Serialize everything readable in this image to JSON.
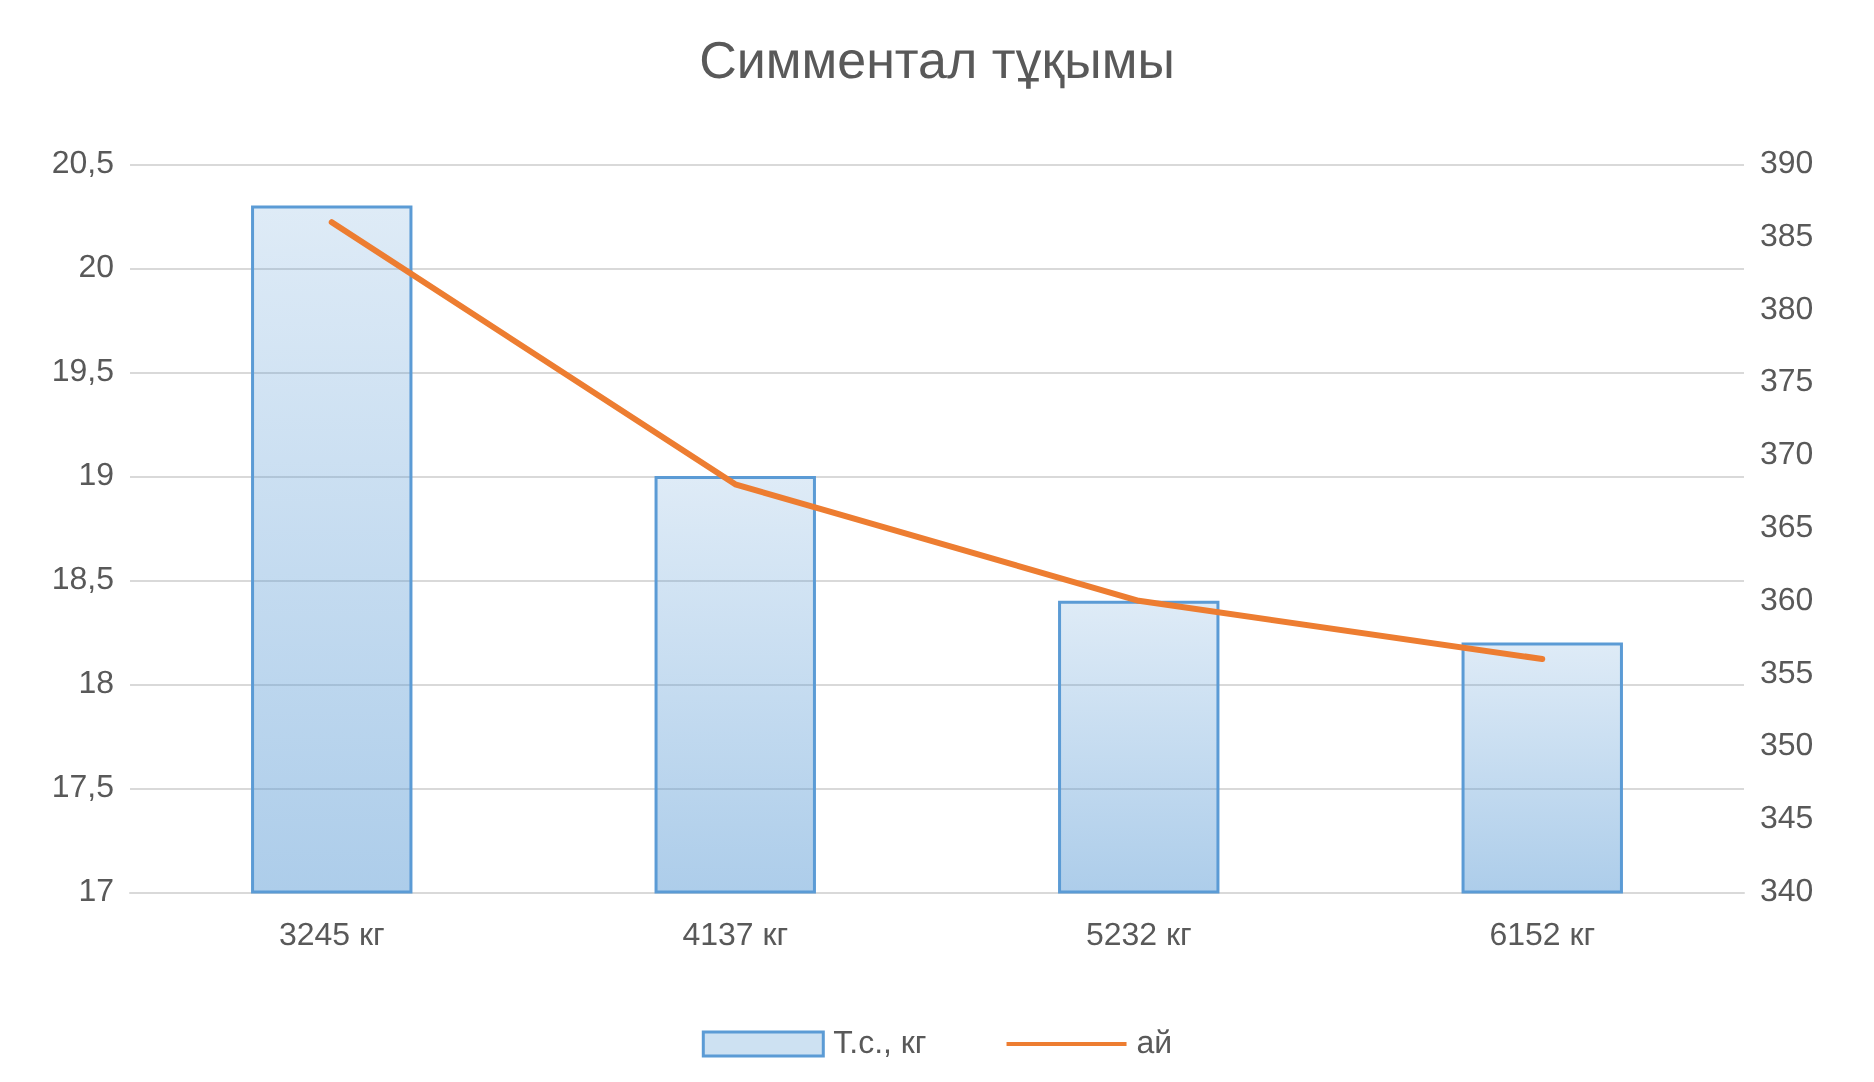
{
  "chart_data": {
    "type": "bar",
    "title": "Симментал тұқымы",
    "categories": [
      "3245 кг",
      "4137 кг",
      "5232 кг",
      "6152 кг"
    ],
    "series": [
      {
        "name": "Т.с., кг",
        "color": "#5b9bd5",
        "values": [
          20.3,
          19.0,
          18.4,
          18.2
        ]
      },
      {
        "name": "ай",
        "type": "line",
        "axis": "y2",
        "color": "#ed7d31",
        "values": [
          386,
          368,
          360,
          356
        ]
      }
    ],
    "ylim": [
      17,
      20.5
    ],
    "yticks": [
      17,
      {
        "value": 17.5,
        "label": "17,5"
      },
      18,
      {
        "value": 18.5,
        "label": "18,5"
      },
      19,
      {
        "value": 19.5,
        "label": "19,5"
      },
      20,
      {
        "value": 20.5,
        "label": "20,5"
      }
    ],
    "y2lim": [
      340,
      390
    ],
    "y2ticks": [
      340,
      345,
      350,
      355,
      360,
      365,
      370,
      375,
      380,
      385,
      390
    ],
    "grid": "y",
    "legend": "bottom",
    "marker": "none",
    "line_style": "solid"
  }
}
